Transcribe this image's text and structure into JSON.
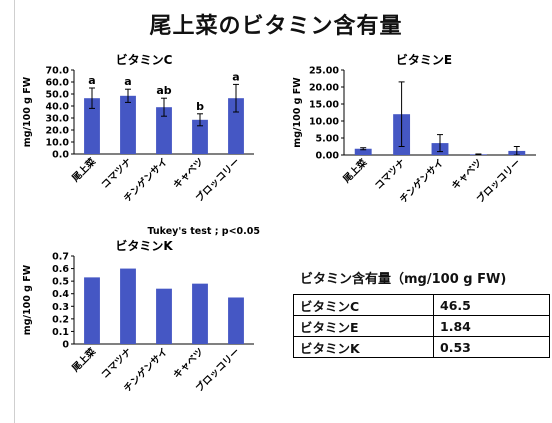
{
  "page_title": "尾上菜のビタミン含有量",
  "chart_data": [
    {
      "type": "bar",
      "title": "ビタミンC",
      "ylabel": "mg/100 g FW",
      "xlabel": "",
      "categories": [
        "尾上菜",
        "コマツナ",
        "チンゲンサイ",
        "キャベツ",
        "ブロッコリー"
      ],
      "values": [
        46.5,
        48.5,
        39.0,
        28.5,
        46.5
      ],
      "errors": [
        8.5,
        5.5,
        7.5,
        5.0,
        11.5
      ],
      "sig_letters": [
        "a",
        "a",
        "ab",
        "b",
        "a"
      ],
      "ylim": [
        0,
        70
      ],
      "yticks": [
        "0.0",
        "10.0",
        "20.0",
        "30.0",
        "40.0",
        "50.0",
        "60.0",
        "70.0"
      ],
      "bar_color": "#4557c4",
      "grid": false
    },
    {
      "type": "bar",
      "title": "ビタミンE",
      "ylabel": "mg/100 g FW",
      "xlabel": "",
      "categories": [
        "尾上菜",
        "コマツナ",
        "チンゲンサイ",
        "キャベツ",
        "ブロッコリー"
      ],
      "values": [
        1.84,
        12.0,
        3.5,
        0.2,
        1.2
      ],
      "errors": [
        0.3,
        9.5,
        2.5,
        0.1,
        1.3
      ],
      "ylim": [
        0,
        25
      ],
      "yticks": [
        "0.00",
        "5.00",
        "10.00",
        "15.00",
        "20.00",
        "25.00"
      ],
      "bar_color": "#4557c4",
      "grid": false
    },
    {
      "type": "bar",
      "title": "ビタミンK",
      "ylabel": "mg/100 g FW",
      "xlabel": "",
      "categories": [
        "尾上菜",
        "コマツナ",
        "チンゲンサイ",
        "キャベツ",
        "ブロッコリー"
      ],
      "values": [
        0.53,
        0.6,
        0.44,
        0.48,
        0.37
      ],
      "ylim": [
        0,
        0.7
      ],
      "yticks": [
        "0",
        "0.1",
        "0.2",
        "0.3",
        "0.4",
        "0.5",
        "0.6",
        "0.7"
      ],
      "bar_color": "#4557c4",
      "grid": false
    }
  ],
  "tukey_note": "Tukey's test ; p<0.05",
  "table": {
    "title": "ビタミン含有量（mg/100 g FW)",
    "rows": [
      {
        "label": "ビタミンC",
        "value": "46.5"
      },
      {
        "label": "ビタミンE",
        "value": "1.84"
      },
      {
        "label": "ビタミンK",
        "value": "0.53"
      }
    ]
  }
}
